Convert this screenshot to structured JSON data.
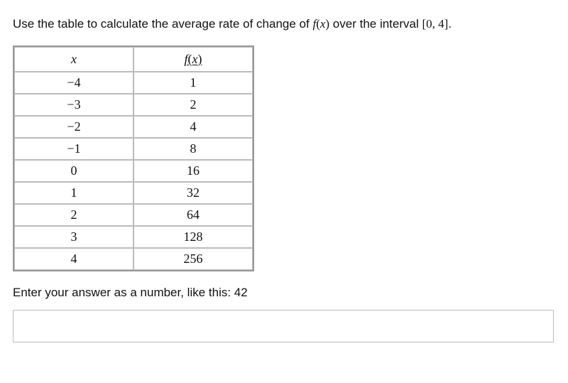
{
  "prompt": {
    "prefix": "Use the table to calculate the average rate of change of ",
    "fx_fvar": "f",
    "fx_paren_open": "(",
    "fx_xvar": "x",
    "fx_paren_close": ")",
    "middle": " over the interval ",
    "interval": "[0, 4]",
    "period": "."
  },
  "table": {
    "type": "table",
    "columns": [
      {
        "label_x": "x"
      },
      {
        "label_fx_f": "f",
        "label_fx_open": "(",
        "label_fx_x": "x",
        "label_fx_close": ")"
      }
    ],
    "col_widths": [
      0.5,
      0.5
    ],
    "border_color": "#999999",
    "cell_border_color": "#bbbbbb",
    "header_fontsize": 18,
    "cell_fontsize": 18,
    "font_family": "Georgia",
    "rows": [
      {
        "x": "−4",
        "fx": "1"
      },
      {
        "x": "−3",
        "fx": "2"
      },
      {
        "x": "−2",
        "fx": "4"
      },
      {
        "x": "−1",
        "fx": "8"
      },
      {
        "x": "0",
        "fx": "16"
      },
      {
        "x": "1",
        "fx": "32"
      },
      {
        "x": "2",
        "fx": "64"
      },
      {
        "x": "3",
        "fx": "128"
      },
      {
        "x": "4",
        "fx": "256"
      }
    ]
  },
  "instruction": "Enter your answer as a number, like this: 42",
  "answer": {
    "value": "",
    "placeholder": ""
  },
  "colors": {
    "text": "#111111",
    "background": "#ffffff",
    "input_border": "#bbbbbb"
  }
}
